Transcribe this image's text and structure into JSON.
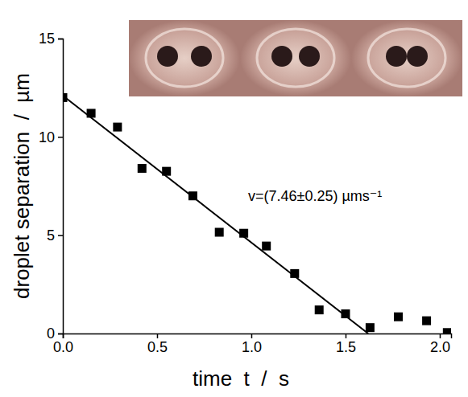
{
  "chart_data": {
    "type": "scatter",
    "x_label": "time  t  /  s",
    "y_label": "droplet separation  /  µm",
    "annotation": "v=(7.46±0.25) µms⁻¹",
    "xlim": [
      0,
      2.06
    ],
    "ylim": [
      0,
      15
    ],
    "xticks": [
      {
        "value": 0,
        "label": "0.0"
      },
      {
        "value": 0.5,
        "label": "0.5"
      },
      {
        "value": 1,
        "label": "1.0"
      },
      {
        "value": 1.5,
        "label": "1.5"
      },
      {
        "value": 2,
        "label": "2.0"
      }
    ],
    "yticks": [
      0,
      5,
      10,
      15
    ],
    "series": [
      {
        "type": "scatter",
        "marker": "square",
        "color": "#000000",
        "x": [
          0,
          0.15,
          0.29,
          0.42,
          0.55,
          0.69,
          0.83,
          0.96,
          1.08,
          1.23,
          1.36,
          1.5,
          1.63,
          1.78,
          1.93,
          2.04
        ],
        "values": [
          12.0,
          11.2,
          10.5,
          8.4,
          8.25,
          7.0,
          5.15,
          5.1,
          4.45,
          3.05,
          1.2,
          1.0,
          0.3,
          0.85,
          0.65,
          0.05
        ]
      },
      {
        "type": "line",
        "line_style": "solid",
        "color": "#000000",
        "x": [
          0,
          1.62
        ],
        "values": [
          12.1,
          0
        ]
      }
    ]
  }
}
